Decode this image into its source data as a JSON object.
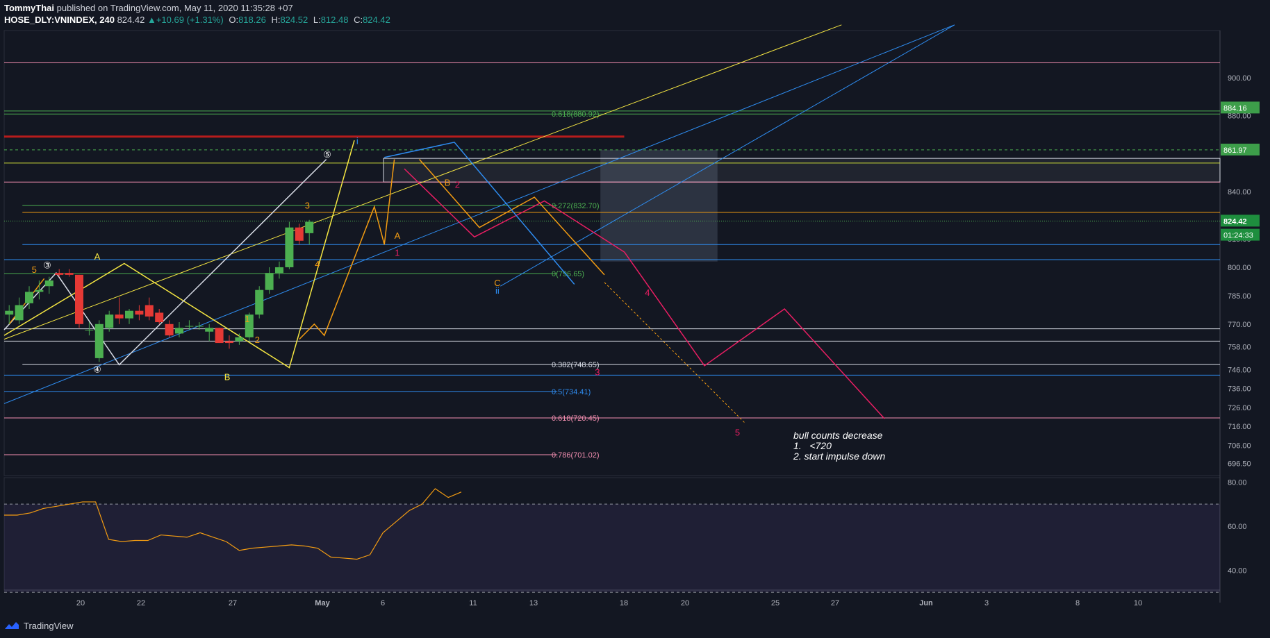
{
  "header": {
    "author": "TommyThai",
    "published": "published on TradingView.com, May 11, 2020 11:35:28 +07",
    "symbol": "HOSE_DLY:VNINDEX, 240",
    "last": "824.42",
    "change": "+10.69 (+1.31%)",
    "o_label": "O:",
    "o_value": "818.26",
    "h_label": "H:",
    "h_value": "824.52",
    "l_label": "L:",
    "l_value": "812.48",
    "c_label": "C:",
    "c_value": "824.42"
  },
  "footer": {
    "brand": "TradingView",
    "logo_icon": "tradingview-logo-icon"
  },
  "note": {
    "lines": [
      "bull counts decrease",
      "1.   <720",
      "2. start impulse down"
    ]
  },
  "colors": {
    "background": "#131722",
    "up": "#4caf50",
    "down": "#e53935",
    "yellow": "#f5e642",
    "orange": "#f39c12",
    "blue": "#2e8cf0",
    "pink": "#e91e63",
    "white": "#d8dce6",
    "green": "#3d9e4a",
    "current_price_bg": "#1e8e3e"
  },
  "chart_data": {
    "type": "candlestick",
    "symbol": "HOSE_DLY:VNINDEX",
    "interval": "240",
    "y_axis": {
      "ticks": [
        "900.00",
        "880.00",
        "840.00",
        "815.00",
        "800.00",
        "785.00",
        "770.00",
        "758.00",
        "746.00",
        "736.00",
        "726.00",
        "716.00",
        "706.00",
        "696.50"
      ],
      "range": [
        690,
        925
      ]
    },
    "x_axis": {
      "ticks": [
        "20",
        "22",
        "27",
        "May",
        "6",
        "11",
        "13",
        "18",
        "20",
        "25",
        "27",
        "Jun",
        "3",
        "8",
        "10"
      ]
    },
    "price_tags": [
      {
        "label": "884.16",
        "kind": "level",
        "value": 884.16
      },
      {
        "label": "861.97",
        "kind": "level",
        "value": 861.97
      },
      {
        "label": "824.42",
        "kind": "last",
        "value": 824.42
      },
      {
        "label": "01:24:33",
        "kind": "countdown",
        "value": 817.0
      }
    ],
    "candles": [
      {
        "x": 0.5,
        "o": 775,
        "h": 780,
        "l": 770,
        "c": 777
      },
      {
        "x": 1.5,
        "o": 772,
        "h": 784,
        "l": 770,
        "c": 780
      },
      {
        "x": 2.5,
        "o": 781,
        "h": 790,
        "l": 778,
        "c": 787
      },
      {
        "x": 3.5,
        "o": 787,
        "h": 793,
        "l": 783,
        "c": 788
      },
      {
        "x": 4.5,
        "o": 790,
        "h": 795,
        "l": 786,
        "c": 793
      },
      {
        "x": 5.5,
        "o": 797,
        "h": 799,
        "l": 795,
        "c": 796
      },
      {
        "x": 6.5,
        "o": 797,
        "h": 799,
        "l": 795,
        "c": 796
      },
      {
        "x": 7.5,
        "o": 796,
        "h": 796,
        "l": 768,
        "c": 770
      },
      {
        "x": 8.5,
        "o": 767,
        "h": 771,
        "l": 764,
        "c": 767
      },
      {
        "x": 9.5,
        "o": 752,
        "h": 772,
        "l": 750,
        "c": 770
      },
      {
        "x": 10.5,
        "o": 768,
        "h": 777,
        "l": 766,
        "c": 775
      },
      {
        "x": 11.5,
        "o": 775,
        "h": 784,
        "l": 770,
        "c": 773
      },
      {
        "x": 12.5,
        "o": 773,
        "h": 778,
        "l": 770,
        "c": 777
      },
      {
        "x": 13.5,
        "o": 777,
        "h": 780,
        "l": 772,
        "c": 775
      },
      {
        "x": 14.5,
        "o": 780,
        "h": 784,
        "l": 772,
        "c": 774
      },
      {
        "x": 15.5,
        "o": 776,
        "h": 778,
        "l": 770,
        "c": 771
      },
      {
        "x": 16.5,
        "o": 770,
        "h": 772,
        "l": 763,
        "c": 764
      },
      {
        "x": 17.5,
        "o": 765,
        "h": 771,
        "l": 763,
        "c": 768
      },
      {
        "x": 18.5,
        "o": 769,
        "h": 772,
        "l": 767,
        "c": 769
      },
      {
        "x": 19.5,
        "o": 769,
        "h": 771,
        "l": 767,
        "c": 769
      },
      {
        "x": 20.5,
        "o": 766,
        "h": 770,
        "l": 761,
        "c": 768
      },
      {
        "x": 21.5,
        "o": 768,
        "h": 768,
        "l": 760,
        "c": 760
      },
      {
        "x": 22.5,
        "o": 761,
        "h": 764,
        "l": 757,
        "c": 760
      },
      {
        "x": 23.5,
        "o": 761,
        "h": 765,
        "l": 759,
        "c": 763
      },
      {
        "x": 24.5,
        "o": 763,
        "h": 776,
        "l": 761,
        "c": 775
      },
      {
        "x": 25.5,
        "o": 775,
        "h": 790,
        "l": 773,
        "c": 788
      },
      {
        "x": 26.5,
        "o": 788,
        "h": 800,
        "l": 786,
        "c": 797
      },
      {
        "x": 27.5,
        "o": 797,
        "h": 803,
        "l": 794,
        "c": 800
      },
      {
        "x": 28.5,
        "o": 800,
        "h": 824,
        "l": 799,
        "c": 821
      },
      {
        "x": 29.5,
        "o": 821,
        "h": 823,
        "l": 812,
        "c": 814
      },
      {
        "x": 30.5,
        "o": 818,
        "h": 825,
        "l": 812,
        "c": 824
      }
    ],
    "levels": [
      {
        "value": 908,
        "color": "#f48fb1",
        "label": "",
        "from": 0,
        "to": 1
      },
      {
        "value": 882.5,
        "color": "#4caf50",
        "label": "",
        "from": 0,
        "to": 1
      },
      {
        "value": 880.92,
        "color": "#4caf50",
        "label": "0.618(880.92)",
        "from": 0,
        "to": 1
      },
      {
        "value": 869,
        "color": "#b71c1c",
        "label": "",
        "from": 0,
        "to": 0.51
      },
      {
        "value": 861.97,
        "color": "#4caf50",
        "label": "",
        "from": 0,
        "to": 1,
        "dashed": true
      },
      {
        "value": 855,
        "color": "#cddc39",
        "label": "",
        "from": 0,
        "to": 1
      },
      {
        "value": 845,
        "color": "#f48fb1",
        "label": "",
        "from": 0,
        "to": 1
      },
      {
        "value": 832.7,
        "color": "#4caf50",
        "label": "0.272(832.70)",
        "from": 0.015,
        "to": 0.455
      },
      {
        "value": 829,
        "color": "#f39c12",
        "label": "",
        "from": 0.015,
        "to": 1
      },
      {
        "value": 824.42,
        "color": "#4caf50",
        "label": "",
        "from": 0,
        "to": 1,
        "dotted": true
      },
      {
        "value": 812,
        "color": "#2e8cf0",
        "label": "",
        "from": 0.015,
        "to": 1
      },
      {
        "value": 804,
        "color": "#2e8cf0",
        "label": "",
        "from": 0,
        "to": 1
      },
      {
        "value": 796.65,
        "color": "#4caf50",
        "label": "0(796.65)",
        "from": 0,
        "to": 0.455
      },
      {
        "value": 767.5,
        "color": "#d8dce6",
        "label": "",
        "from": 0,
        "to": 1
      },
      {
        "value": 761,
        "color": "#d8dce6",
        "label": "",
        "from": 0,
        "to": 1
      },
      {
        "value": 748.65,
        "color": "#d8dce6",
        "label": "0.382(748.65)",
        "from": 0.015,
        "to": 1
      },
      {
        "value": 743,
        "color": "#2e8cf0",
        "label": "",
        "from": 0,
        "to": 1
      },
      {
        "value": 734.41,
        "color": "#2e8cf0",
        "label": "0.5(734.41)",
        "from": 0,
        "to": 0.455
      },
      {
        "value": 720.45,
        "color": "#f48fb1",
        "label": "0.618(720.45)",
        "from": 0,
        "to": 1
      },
      {
        "value": 701.02,
        "color": "#f48fb1",
        "label": "0.786(701.02)",
        "from": 0,
        "to": 0.455
      }
    ],
    "wave_labels": [
      {
        "text": "5",
        "x": 3.0,
        "y": 797,
        "color": "#f39c12"
      },
      {
        "text": "③",
        "x": 4.3,
        "y": 799.5,
        "color": "#ffffff"
      },
      {
        "text": "A",
        "x": 9.3,
        "y": 804,
        "color": "#f5e642"
      },
      {
        "text": "④",
        "x": 9.3,
        "y": 744.5,
        "color": "#ffffff"
      },
      {
        "text": "B",
        "x": 22.3,
        "y": 740.5,
        "color": "#f5e642"
      },
      {
        "text": "1",
        "x": 24.3,
        "y": 771,
        "color": "#f39c12"
      },
      {
        "text": "2",
        "x": 25.3,
        "y": 760,
        "color": "#f39c12"
      },
      {
        "text": "3",
        "x": 30.3,
        "y": 831,
        "color": "#f39c12"
      },
      {
        "text": "4",
        "x": 31.3,
        "y": 800,
        "color": "#f39c12"
      },
      {
        "text": "⑤",
        "x": 32.3,
        "y": 858,
        "color": "#ffffff"
      },
      {
        "text": "i",
        "x": 35.3,
        "y": 865,
        "color": "#2e8cf0"
      },
      {
        "text": "A",
        "x": 39.3,
        "y": 815,
        "color": "#f39c12"
      },
      {
        "text": "1",
        "x": 39.3,
        "y": 806,
        "color": "#e91e63"
      },
      {
        "text": "B",
        "x": 44.3,
        "y": 843,
        "color": "#f39c12"
      },
      {
        "text": "2",
        "x": 45.3,
        "y": 842,
        "color": "#e91e63"
      },
      {
        "text": "C",
        "x": 49.3,
        "y": 790,
        "color": "#f39c12"
      },
      {
        "text": "ii",
        "x": 49.3,
        "y": 786,
        "color": "#2e8cf0"
      },
      {
        "text": "3",
        "x": 59.3,
        "y": 743,
        "color": "#e91e63"
      },
      {
        "text": "4",
        "x": 64.3,
        "y": 785,
        "color": "#e91e63"
      },
      {
        "text": "5",
        "x": 73.3,
        "y": 711,
        "color": "#e91e63"
      }
    ],
    "rsi": {
      "ticks": [
        "80.00",
        "60.00",
        "40.00"
      ],
      "range": [
        31,
        82
      ],
      "overbought": 70,
      "oversold": 30,
      "values": [
        65,
        65,
        66,
        68,
        69,
        70,
        71,
        71,
        54,
        53,
        53.5,
        53.5,
        56,
        55.5,
        55,
        57,
        55,
        53,
        49,
        50,
        50.5,
        51,
        51.5,
        51,
        50,
        46,
        45.5,
        45,
        47,
        57,
        62,
        67,
        70,
        77,
        73,
        75.5
      ]
    }
  }
}
